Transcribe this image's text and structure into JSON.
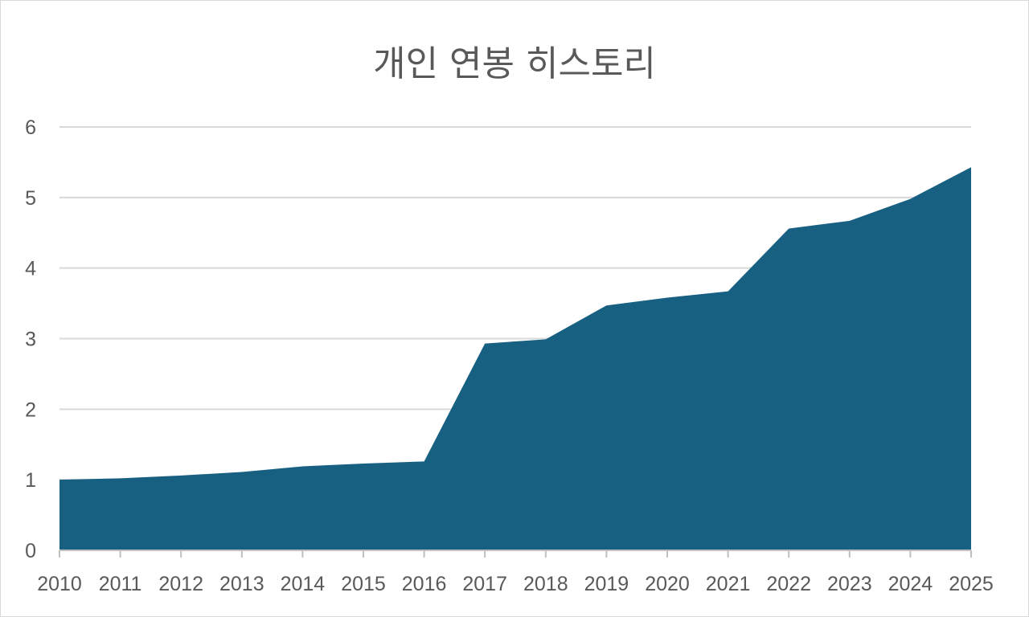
{
  "chart_data": {
    "type": "area",
    "title": "개인 연봉 히스토리",
    "xlabel": "",
    "ylabel": "",
    "x": [
      "2010",
      "2011",
      "2012",
      "2013",
      "2014",
      "2015",
      "2016",
      "2017",
      "2018",
      "2019",
      "2020",
      "2021",
      "2022",
      "2023",
      "2024",
      "2025"
    ],
    "series": [
      {
        "values": [
          1.0,
          1.02,
          1.06,
          1.11,
          1.19,
          1.23,
          1.26,
          2.93,
          2.99,
          3.47,
          3.58,
          3.67,
          4.56,
          4.67,
          4.98,
          5.43
        ]
      }
    ],
    "ylim": [
      0,
      6
    ],
    "yticks": [
      "0",
      "1",
      "2",
      "3",
      "4",
      "5",
      "6"
    ],
    "grid": true,
    "legend": "none",
    "colors": {
      "area": "#176082",
      "grid": "#d9d9d9",
      "axis": "#bfbfbf",
      "text": "#595959"
    }
  }
}
